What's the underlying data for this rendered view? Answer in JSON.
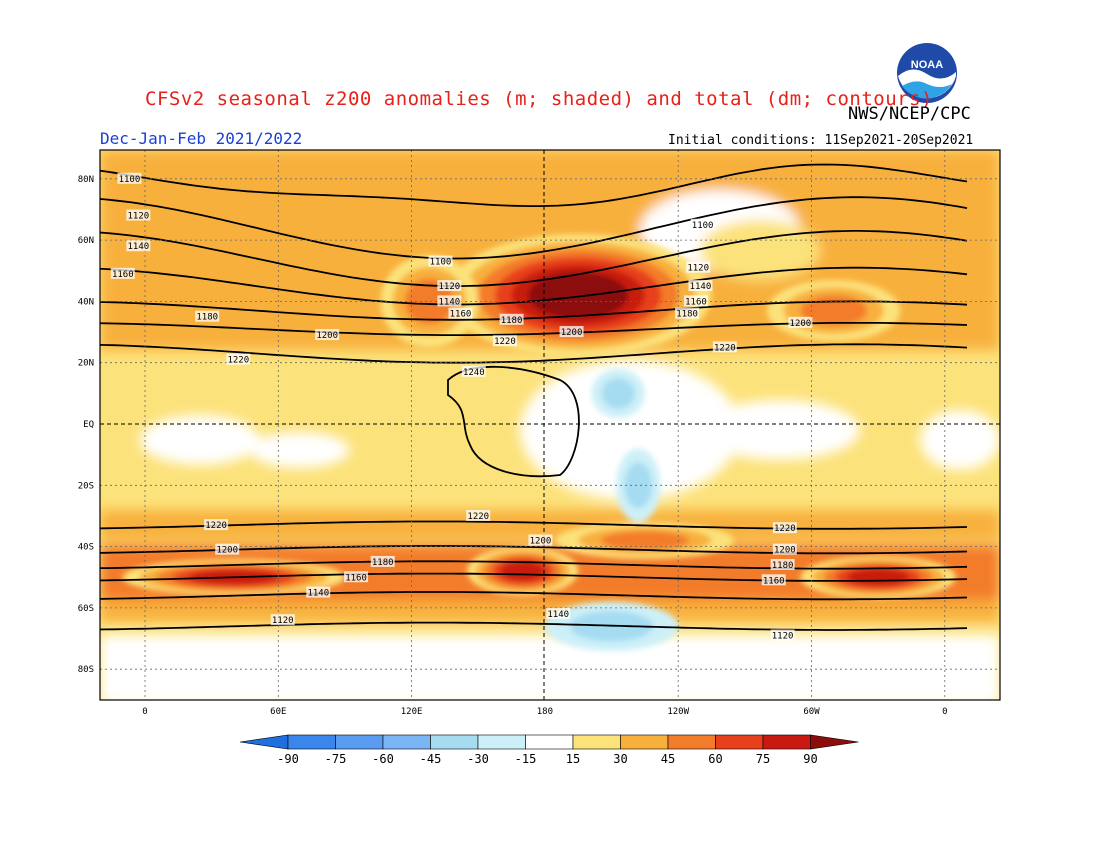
{
  "header": {
    "title": "CFSv2 seasonal z200 anomalies (m; shaded) and total (dm; contours)",
    "agency": "NWS/NCEP/CPC",
    "season": "Dec-Jan-Feb 2021/2022",
    "initial_conditions": "Initial conditions: 11Sep2021-20Sep2021"
  },
  "logo": {
    "text": "NOAA"
  },
  "map": {
    "lat_ticks": [
      "80N",
      "60N",
      "40N",
      "20N",
      "EQ",
      "20S",
      "40S",
      "60S",
      "80S"
    ],
    "lon_ticks": [
      "0",
      "60E",
      "120E",
      "180",
      "120W",
      "60W",
      "0"
    ],
    "contours": [
      {
        "value": 1100,
        "label": "1100"
      },
      {
        "value": 1120,
        "label": "1120"
      },
      {
        "value": 1140,
        "label": "1140"
      },
      {
        "value": 1160,
        "label": "1160"
      },
      {
        "value": 1180,
        "label": "1180"
      },
      {
        "value": 1200,
        "label": "1200"
      },
      {
        "value": 1220,
        "label": "1220"
      },
      {
        "value": 1240,
        "label": "1240"
      }
    ],
    "contour_labels": [
      {
        "text": "1100",
        "lon": -7,
        "lat": 80
      },
      {
        "text": "1120",
        "lon": -3,
        "lat": 68
      },
      {
        "text": "1140",
        "lon": -3,
        "lat": 58
      },
      {
        "text": "1160",
        "lon": -10,
        "lat": 49
      },
      {
        "text": "1180",
        "lon": 28,
        "lat": 35
      },
      {
        "text": "1200",
        "lon": 82,
        "lat": 29
      },
      {
        "text": "1220",
        "lon": 42,
        "lat": 21
      },
      {
        "text": "1100",
        "lon": 133,
        "lat": 53
      },
      {
        "text": "1120",
        "lon": 137,
        "lat": 45
      },
      {
        "text": "1140",
        "lon": 137,
        "lat": 40
      },
      {
        "text": "1160",
        "lon": 142,
        "lat": 36
      },
      {
        "text": "1180",
        "lon": 165,
        "lat": 34
      },
      {
        "text": "1200",
        "lon": 192,
        "lat": 30
      },
      {
        "text": "1220",
        "lon": 162,
        "lat": 27
      },
      {
        "text": "1240",
        "lon": 148,
        "lat": 17
      },
      {
        "text": "1100",
        "lon": 251,
        "lat": 65
      },
      {
        "text": "1120",
        "lon": 249,
        "lat": 51
      },
      {
        "text": "1140",
        "lon": 250,
        "lat": 45
      },
      {
        "text": "1160",
        "lon": 248,
        "lat": 40
      },
      {
        "text": "1180",
        "lon": 244,
        "lat": 36
      },
      {
        "text": "1200",
        "lon": 295,
        "lat": 33
      },
      {
        "text": "1220",
        "lon": 261,
        "lat": 25
      },
      {
        "text": "1220",
        "lon": 32,
        "lat": -33
      },
      {
        "text": "1200",
        "lon": 37,
        "lat": -41
      },
      {
        "text": "1180",
        "lon": 107,
        "lat": -45
      },
      {
        "text": "1160",
        "lon": 95,
        "lat": -50
      },
      {
        "text": "1140",
        "lon": 78,
        "lat": -55
      },
      {
        "text": "1120",
        "lon": 62,
        "lat": -64
      },
      {
        "text": "1220",
        "lon": 150,
        "lat": -30
      },
      {
        "text": "1200",
        "lon": 178,
        "lat": -38
      },
      {
        "text": "1140",
        "lon": 186,
        "lat": -62
      },
      {
        "text": "1220",
        "lon": 288,
        "lat": -34
      },
      {
        "text": "1200",
        "lon": 288,
        "lat": -41
      },
      {
        "text": "1180",
        "lon": 287,
        "lat": -46
      },
      {
        "text": "1160",
        "lon": 283,
        "lat": -51
      },
      {
        "text": "1120",
        "lon": 287,
        "lat": -69
      }
    ],
    "anomaly_regions": [
      {
        "lon": 195,
        "lat": 42,
        "rx": 60,
        "ry": 20,
        "value": 90
      },
      {
        "lon": 128,
        "lat": 40,
        "rx": 22,
        "ry": 15,
        "value": 45
      },
      {
        "lon": 310,
        "lat": 37,
        "rx": 30,
        "ry": 10,
        "value": 45
      },
      {
        "lon": 170,
        "lat": -48,
        "rx": 25,
        "ry": 8,
        "value": 75
      },
      {
        "lon": 225,
        "lat": -38,
        "rx": 40,
        "ry": 6,
        "value": 45
      },
      {
        "lon": 330,
        "lat": -50,
        "rx": 35,
        "ry": 7,
        "value": 75
      },
      {
        "lon": 40,
        "lat": -50,
        "rx": 50,
        "ry": 6,
        "value": 75
      },
      {
        "lon": 222,
        "lat": -20,
        "rx": 10,
        "ry": 12,
        "value": -30
      },
      {
        "lon": 213,
        "lat": 10,
        "rx": 12,
        "ry": 8,
        "value": -30
      },
      {
        "lon": 210,
        "lat": -66,
        "rx": 30,
        "ry": 8,
        "value": -30
      }
    ]
  },
  "colorbar": {
    "values": [
      "-90",
      "-75",
      "-60",
      "-45",
      "-30",
      "-15",
      "15",
      "30",
      "45",
      "60",
      "75",
      "90"
    ],
    "colors": [
      "#1e6fe0",
      "#3a86ec",
      "#5a9cf0",
      "#7bb6f4",
      "#a5dcf2",
      "#cdf0f8",
      "#ffffff",
      "#fce27a",
      "#f8b03c",
      "#f37c2a",
      "#e8401d",
      "#c81a10",
      "#8c0d0a"
    ]
  },
  "colors": {
    "title": "#e8201a",
    "season": "#1a3fd6",
    "land": "#ffffff"
  }
}
